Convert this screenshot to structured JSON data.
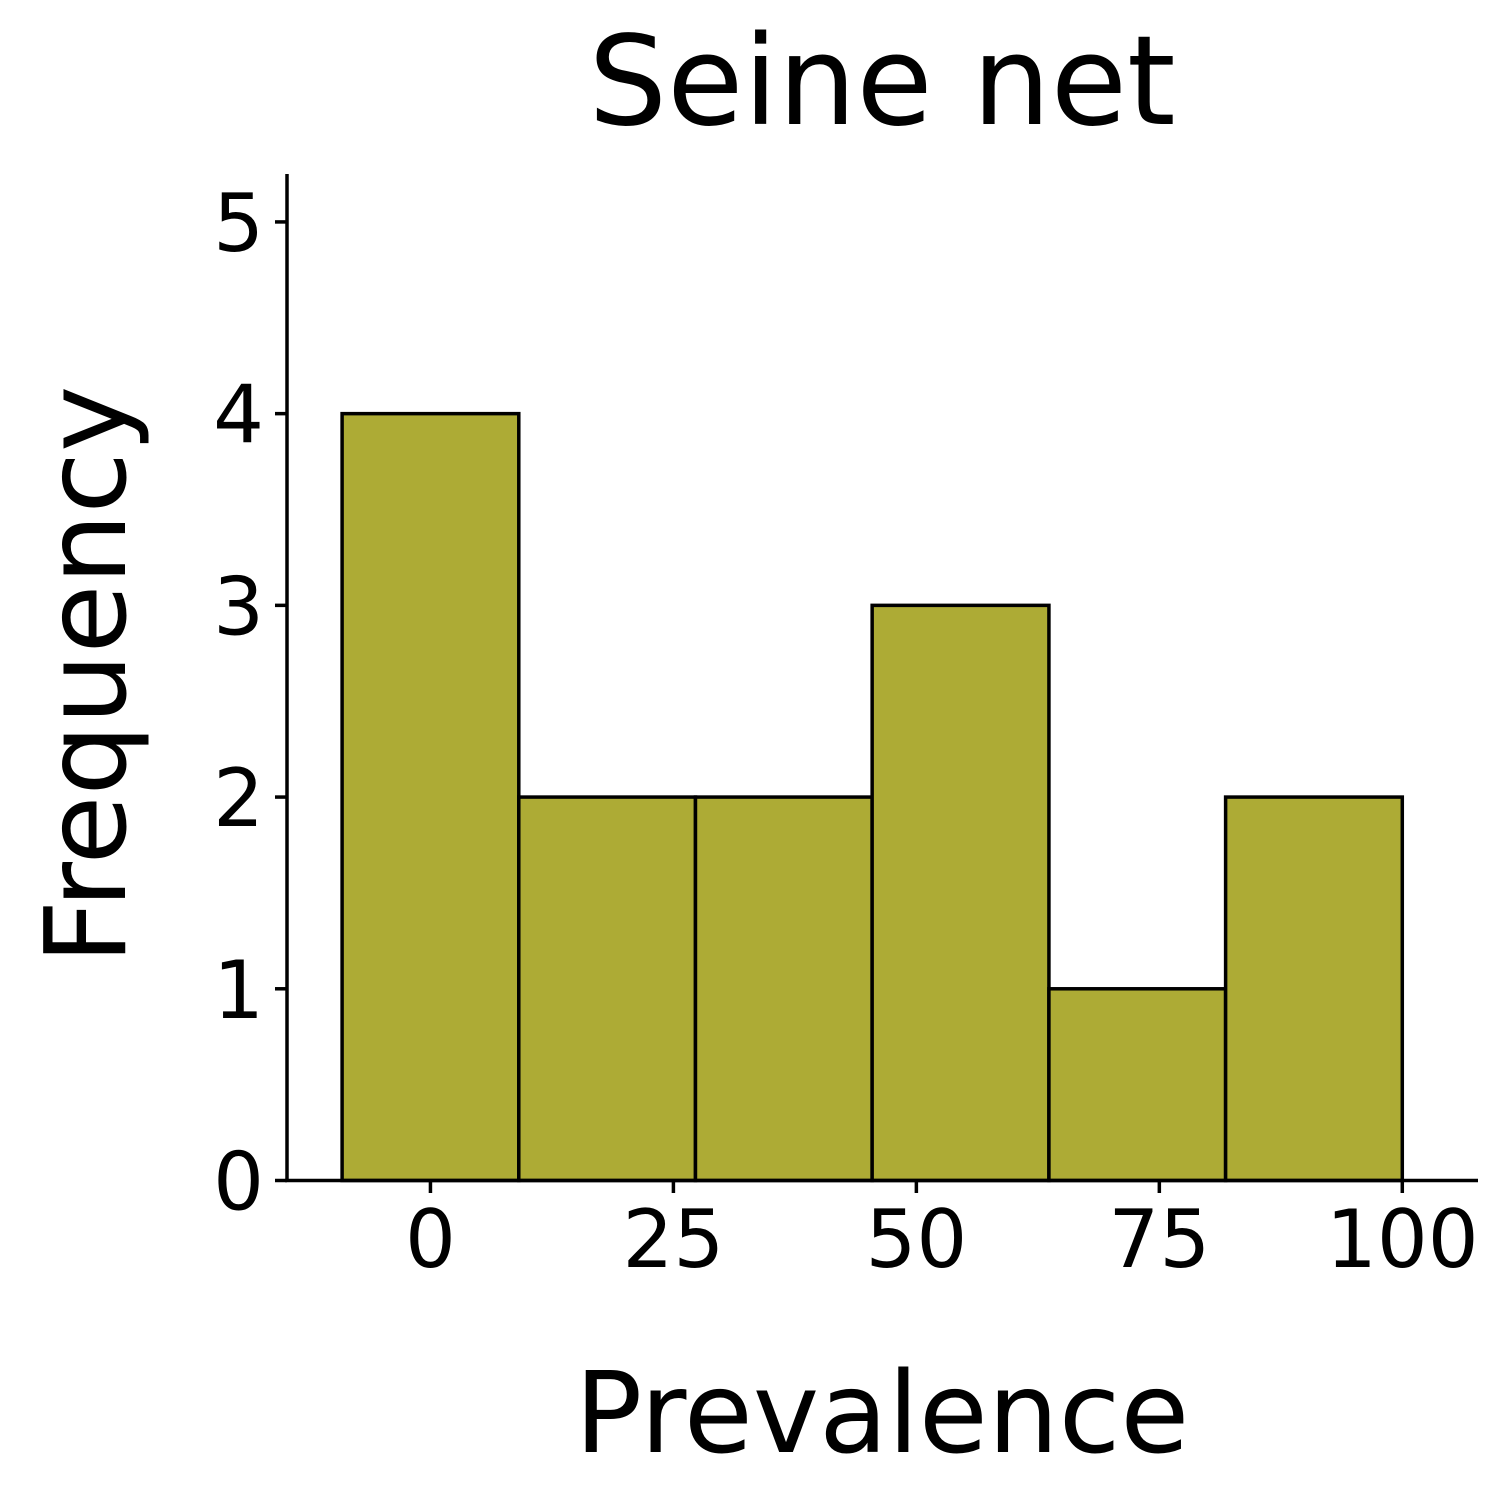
{
  "chart_data": {
    "type": "bar",
    "title": "Seine net",
    "xlabel": "Prevalence",
    "ylabel": "Frequency",
    "bins": [
      {
        "start": -9.09,
        "end": 9.09,
        "count": 4
      },
      {
        "start": 9.09,
        "end": 27.27,
        "count": 2
      },
      {
        "start": 27.27,
        "end": 45.45,
        "count": 2
      },
      {
        "start": 45.45,
        "end": 63.64,
        "count": 3
      },
      {
        "start": 63.64,
        "end": 81.82,
        "count": 1
      },
      {
        "start": 81.82,
        "end": 100.0,
        "count": 2
      }
    ],
    "xlim": [
      -14.76,
      107.79
    ],
    "ylim": [
      0,
      5.25
    ],
    "x_ticks": [
      0,
      25,
      50,
      75,
      100
    ],
    "x_tick_labels": [
      "0",
      "25",
      "50",
      "75",
      "100"
    ],
    "y_ticks": [
      0,
      1,
      2,
      3,
      4,
      5
    ],
    "y_tick_labels": [
      "0",
      "1",
      "2",
      "3",
      "4",
      "5"
    ],
    "bar_color": "#adab35",
    "bar_edge_color": "#000000",
    "grid": false,
    "legend": false
  }
}
